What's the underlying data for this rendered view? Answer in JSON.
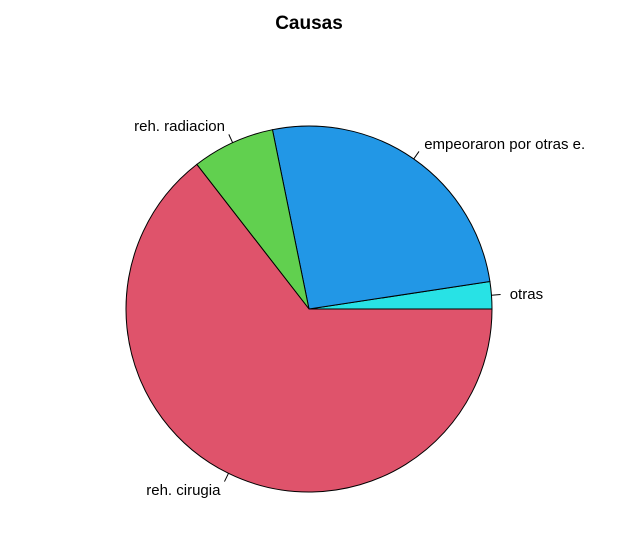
{
  "chart_data": {
    "type": "pie",
    "title": "Causas",
    "slices": [
      {
        "label": "otras",
        "value": 2.4,
        "color": "#28E2E5"
      },
      {
        "label": "empeoraron por otras e.",
        "value": 25.8,
        "color": "#2297E6"
      },
      {
        "label": "reh. radiacion",
        "value": 7.3,
        "color": "#61D04F"
      },
      {
        "label": "reh. cirugia",
        "value": 64.5,
        "color": "#DF536B"
      }
    ],
    "start_angle_deg": 0,
    "direction": "counterclockwise"
  }
}
